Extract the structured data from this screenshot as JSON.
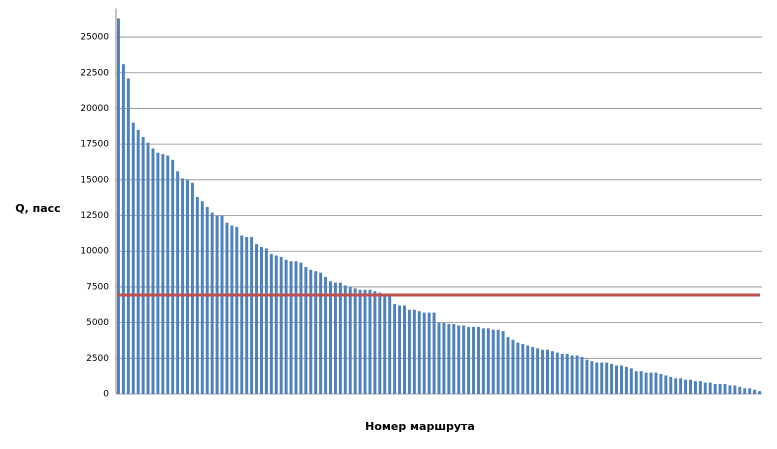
{
  "chart_data": {
    "type": "bar",
    "y_label": "Q, пасс",
    "x_label": "Номер маршрута",
    "categories": [
      null,
      null,
      null,
      null,
      null,
      null,
      null,
      null,
      null,
      null,
      null,
      null,
      null,
      null,
      null,
      null,
      null,
      null,
      null,
      null,
      null,
      null,
      null,
      null,
      null,
      null,
      null,
      null,
      null,
      null,
      null,
      null,
      null,
      null,
      null,
      null,
      null,
      null,
      null,
      null,
      null,
      null,
      null,
      null,
      null,
      null,
      null,
      null,
      null,
      null,
      null,
      null,
      null,
      null,
      null,
      null,
      null,
      null,
      null,
      null,
      null,
      null,
      null,
      null,
      null,
      null,
      null,
      null,
      null,
      null,
      null,
      null,
      null,
      null,
      null,
      null,
      null,
      null,
      null,
      null,
      null,
      null,
      null,
      null,
      null,
      null,
      null,
      null,
      null,
      null,
      null,
      null,
      null,
      null,
      null,
      null,
      null,
      null,
      null,
      null,
      null,
      null,
      null,
      null,
      null,
      null,
      null,
      null,
      null,
      null,
      null,
      null,
      null,
      null,
      null,
      null,
      null,
      null,
      null,
      null,
      null,
      null,
      null,
      null,
      null,
      null,
      null,
      null,
      null,
      null,
      null
    ],
    "values": [
      26300,
      23100,
      22100,
      19000,
      18500,
      18000,
      17600,
      17200,
      16900,
      16800,
      16700,
      16400,
      15600,
      15100,
      15000,
      14800,
      13800,
      13500,
      13100,
      12700,
      12500,
      12500,
      12000,
      11800,
      11700,
      11100,
      11000,
      11000,
      10500,
      10300,
      10200,
      9800,
      9700,
      9600,
      9400,
      9300,
      9300,
      9200,
      8900,
      8700,
      8600,
      8500,
      8200,
      7900,
      7800,
      7800,
      7600,
      7500,
      7400,
      7300,
      7300,
      7300,
      7200,
      7100,
      7000,
      6900,
      6300,
      6200,
      6200,
      5900,
      5900,
      5800,
      5700,
      5700,
      5700,
      5000,
      5000,
      4900,
      4900,
      4800,
      4800,
      4700,
      4700,
      4700,
      4600,
      4600,
      4500,
      4500,
      4400,
      4000,
      3800,
      3600,
      3500,
      3400,
      3300,
      3200,
      3100,
      3100,
      3000,
      2900,
      2800,
      2800,
      2700,
      2700,
      2600,
      2400,
      2300,
      2200,
      2200,
      2200,
      2100,
      2000,
      2000,
      1900,
      1800,
      1600,
      1600,
      1500,
      1500,
      1500,
      1400,
      1300,
      1200,
      1100,
      1100,
      1000,
      1000,
      900,
      900,
      800,
      800,
      700,
      700,
      700,
      600,
      600,
      500,
      400,
      400,
      300,
      200
    ],
    "color": "#4f81bd",
    "reference_line": {
      "value": 6930,
      "color": "#c0504d"
    },
    "ylim": [
      0,
      27000
    ],
    "yticks": [
      0,
      2500,
      5000,
      7500,
      10000,
      12500,
      15000,
      17500,
      20000,
      22500,
      25000
    ],
    "grid": true
  }
}
